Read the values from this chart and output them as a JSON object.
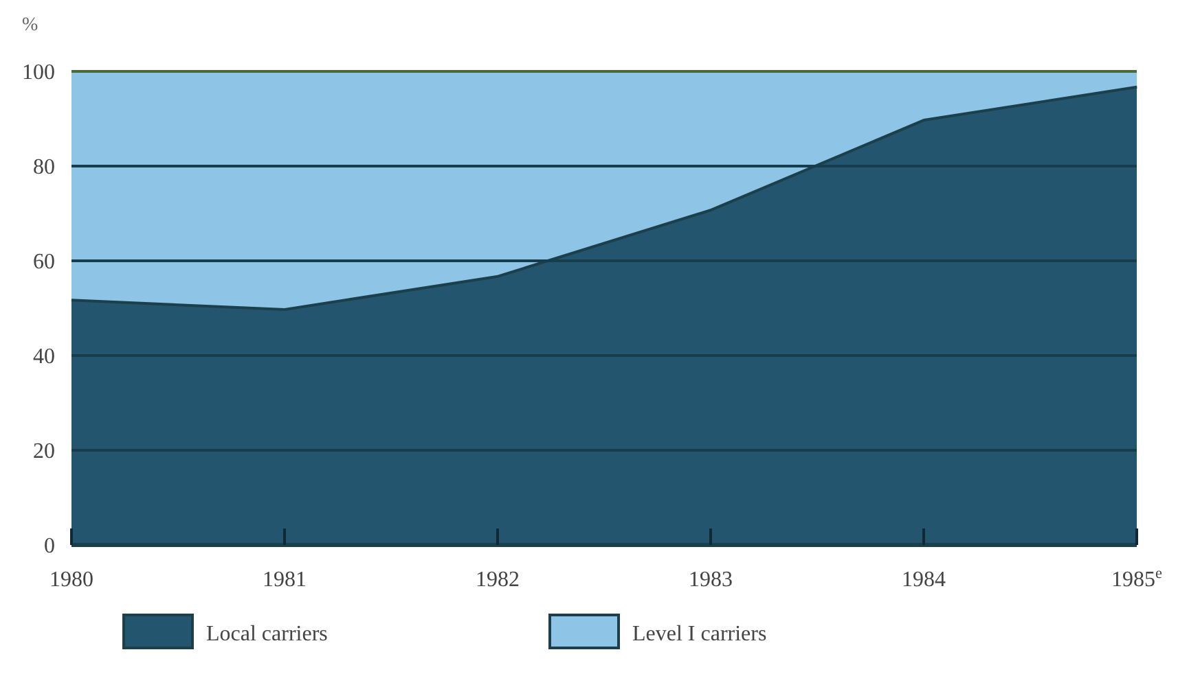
{
  "chart_data": {
    "type": "area",
    "stacked": true,
    "ylabel": "%",
    "categories": [
      "1980",
      "1981",
      "1982",
      "1983",
      "1984",
      "1985$^{e}$"
    ],
    "series": [
      {
        "name": "Local carriers",
        "color": "#23566e",
        "values": [
          52,
          50,
          57,
          71,
          90,
          97
        ]
      },
      {
        "name": "Level I carriers",
        "color": "#8ec4e6",
        "values": [
          48,
          50,
          43,
          29,
          10,
          3
        ]
      }
    ],
    "ylim": [
      0,
      100
    ],
    "yticks": [
      0,
      20,
      40,
      60,
      80,
      100
    ],
    "grid": "y",
    "legend": "bottom"
  }
}
